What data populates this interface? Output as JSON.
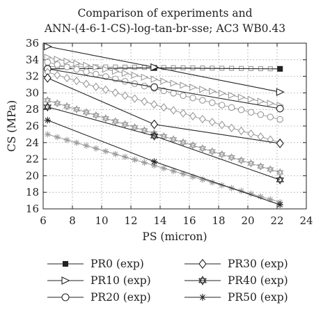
{
  "chart_data": {
    "type": "line",
    "title_line1": "Comparison of experiments and",
    "title_line2": "ANN-(4-6-1-CS)-log-tan-br-sse; AC3 WB0.43",
    "xlabel": "PS (micron)",
    "ylabel": "CS (MPa)",
    "xlim": [
      6,
      24
    ],
    "ylim": [
      16,
      36
    ],
    "xticks": [
      6,
      8,
      10,
      12,
      14,
      16,
      18,
      20,
      22,
      24
    ],
    "yticks": [
      16,
      18,
      20,
      22,
      24,
      26,
      28,
      30,
      32,
      34,
      36
    ],
    "grid": true,
    "legend_position": "bottom",
    "series": [
      {
        "name": "PR0 (exp)",
        "marker": "square",
        "exp_x": [
          6.3,
          13.6,
          22.2
        ],
        "exp_y": [
          32.9,
          33.0,
          32.9
        ],
        "model_y0": 33.2,
        "model_y1": 32.9
      },
      {
        "name": "PR10 (exp)",
        "marker": "triangle-right",
        "exp_x": [
          6.3,
          13.6,
          22.2
        ],
        "exp_y": [
          35.6,
          33.1,
          30.1
        ],
        "model_y0": 34.3,
        "model_y1": 28.5
      },
      {
        "name": "PR20 (exp)",
        "marker": "circle",
        "exp_x": [
          6.3,
          13.6,
          22.2
        ],
        "exp_y": [
          32.9,
          30.7,
          28.1
        ],
        "model_y0": 33.7,
        "model_y1": 26.8
      },
      {
        "name": "PR30 (exp)",
        "marker": "diamond",
        "exp_x": [
          6.3,
          13.6,
          22.2
        ],
        "exp_y": [
          31.8,
          26.2,
          23.9
        ],
        "model_y0": 32.5,
        "model_y1": 24.0
      },
      {
        "name": "PR40 (exp)",
        "marker": "star",
        "exp_x": [
          6.3,
          13.6,
          22.2
        ],
        "exp_y": [
          28.3,
          24.8,
          19.5
        ],
        "model_y0": 29.1,
        "model_y1": 20.4
      },
      {
        "name": "PR50 (exp)",
        "marker": "asterisk",
        "exp_x": [
          6.3,
          13.6,
          22.2
        ],
        "exp_y": [
          26.7,
          21.7,
          16.5
        ],
        "model_y0": 25.0,
        "model_y1": 16.8
      }
    ]
  }
}
